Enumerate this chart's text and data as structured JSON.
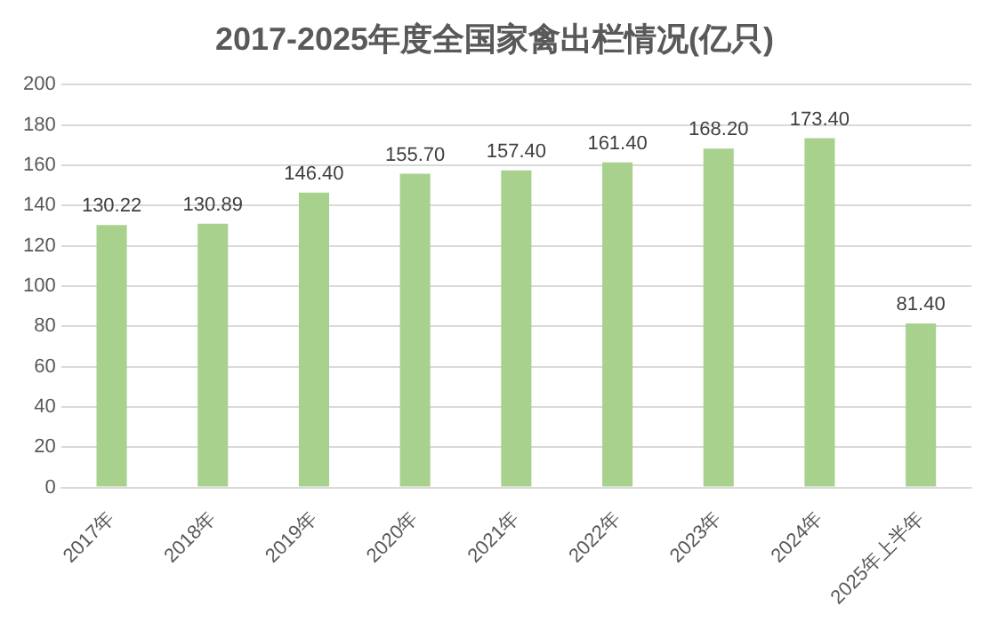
{
  "chart_data": {
    "type": "bar",
    "title": "2017-2025年度全国家禽出栏情况(亿只)",
    "categories": [
      "2017年",
      "2018年",
      "2019年",
      "2020年",
      "2021年",
      "2022年",
      "2023年",
      "2024年",
      "2025年上半年"
    ],
    "values": [
      130.22,
      130.89,
      146.4,
      155.7,
      157.4,
      161.4,
      168.2,
      173.4,
      81.4
    ],
    "value_labels": [
      "130.22",
      "130.89",
      "146.40",
      "155.70",
      "157.40",
      "161.40",
      "168.20",
      "173.40",
      "81.40"
    ],
    "color": "#a9d18e",
    "ylim": [
      0,
      200
    ],
    "yticks": [
      0,
      20,
      40,
      60,
      80,
      100,
      120,
      140,
      160,
      180,
      200
    ],
    "grid": "y"
  }
}
